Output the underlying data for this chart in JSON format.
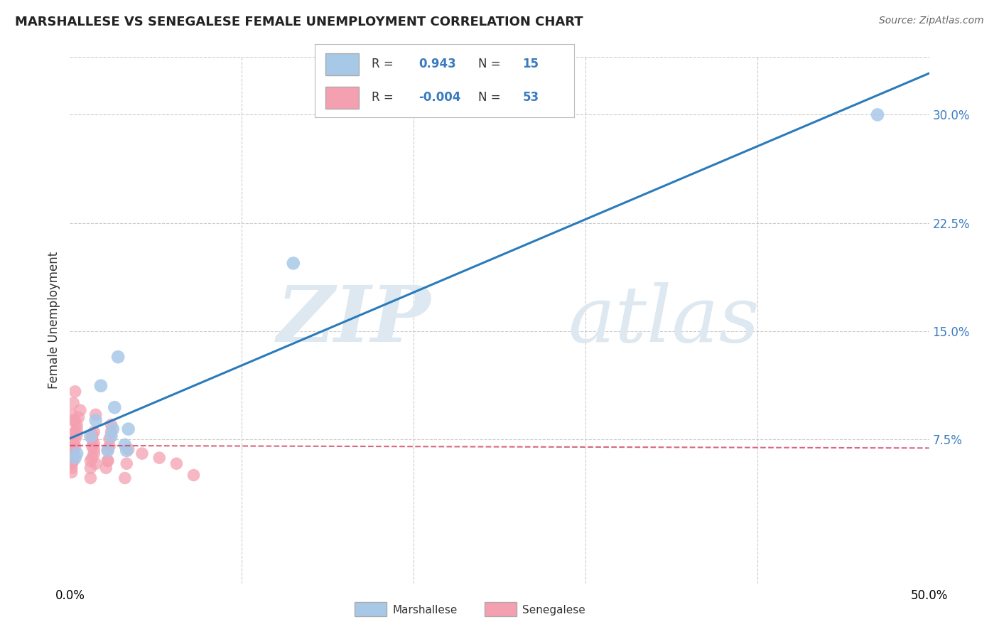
{
  "title": "MARSHALLESE VS SENEGALESE FEMALE UNEMPLOYMENT CORRELATION CHART",
  "source": "Source: ZipAtlas.com",
  "ylabel": "Female Unemployment",
  "xlim": [
    0.0,
    0.5
  ],
  "ylim": [
    -0.025,
    0.34
  ],
  "ytick_labels_right": [
    "7.5%",
    "15.0%",
    "22.5%",
    "30.0%"
  ],
  "ytick_values_right": [
    0.075,
    0.15,
    0.225,
    0.3
  ],
  "watermark_zip": "ZIP",
  "watermark_atlas": "atlas",
  "legend_blue_r": "0.943",
  "legend_blue_n": "15",
  "legend_pink_r": "-0.004",
  "legend_pink_n": "53",
  "blue_color": "#a8c8e8",
  "pink_color": "#f4a0b0",
  "blue_line_color": "#2b7bba",
  "pink_line_color": "#d04060",
  "right_axis_color": "#3a7bbf",
  "background_color": "#ffffff",
  "grid_color": "#cccccc",
  "marshallese_x": [
    0.003,
    0.004,
    0.012,
    0.015,
    0.018,
    0.022,
    0.025,
    0.028,
    0.024,
    0.026,
    0.032,
    0.034,
    0.033,
    0.13,
    0.47
  ],
  "marshallese_y": [
    0.062,
    0.065,
    0.077,
    0.088,
    0.112,
    0.067,
    0.082,
    0.132,
    0.077,
    0.097,
    0.071,
    0.082,
    0.067,
    0.197,
    0.3
  ],
  "senegalese_x": [
    0.002,
    0.003,
    0.004,
    0.005,
    0.006,
    0.002,
    0.003,
    0.004,
    0.002,
    0.003,
    0.001,
    0.002,
    0.001,
    0.002,
    0.001,
    0.003,
    0.004,
    0.002,
    0.001,
    0.002,
    0.003,
    0.001,
    0.002,
    0.001,
    0.002,
    0.012,
    0.013,
    0.014,
    0.015,
    0.013,
    0.014,
    0.012,
    0.014,
    0.013,
    0.015,
    0.012,
    0.014,
    0.013,
    0.022,
    0.023,
    0.024,
    0.022,
    0.023,
    0.021,
    0.024,
    0.022,
    0.032,
    0.033,
    0.034,
    0.042,
    0.052,
    0.062,
    0.072
  ],
  "senegalese_y": [
    0.072,
    0.08,
    0.085,
    0.09,
    0.095,
    0.065,
    0.075,
    0.082,
    0.06,
    0.07,
    0.055,
    0.065,
    0.058,
    0.062,
    0.052,
    0.088,
    0.078,
    0.068,
    0.092,
    0.1,
    0.108,
    0.058,
    0.068,
    0.078,
    0.088,
    0.06,
    0.07,
    0.08,
    0.092,
    0.062,
    0.072,
    0.055,
    0.065,
    0.075,
    0.058,
    0.048,
    0.068,
    0.078,
    0.06,
    0.07,
    0.08,
    0.068,
    0.075,
    0.055,
    0.085,
    0.06,
    0.048,
    0.058,
    0.068,
    0.065,
    0.062,
    0.058,
    0.05
  ]
}
